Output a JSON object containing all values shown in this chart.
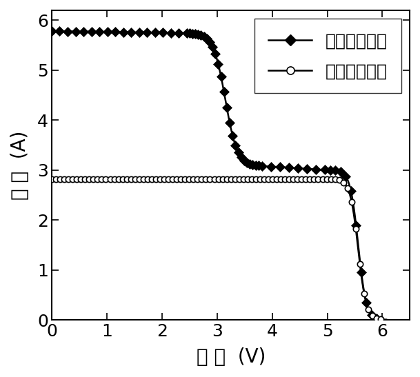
{
  "xlabel_display": "电 压  (V)",
  "ylabel_display": "电 流  (A)",
  "xlim": [
    0,
    6.5
  ],
  "ylim": [
    0,
    6.2
  ],
  "xticks": [
    0,
    1,
    2,
    3,
    4,
    5,
    6
  ],
  "yticks": [
    0,
    1,
    2,
    3,
    4,
    5,
    6
  ],
  "legend1": "有旁路二极管",
  "legend2": "无旁路二极管",
  "isc1": 5.78,
  "isc2": 2.82,
  "voc1": 6.02,
  "voc2": 6.02,
  "drop1_start": 2.5,
  "drop1_end": 3.8,
  "plateau_val": 3.08,
  "plateau_end": 5.0,
  "final_drop_start": 5.0,
  "drop2_start": 5.0
}
